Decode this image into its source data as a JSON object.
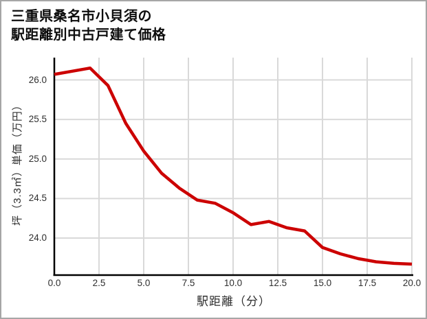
{
  "title": {
    "line1": "三重県桑名市小貝須の",
    "line2": "駅距離別中古戸建て価格"
  },
  "chart_data": {
    "type": "line",
    "title": "三重県桑名市小貝須の駅距離別中古戸建て価格",
    "xlabel": "駅距離（分）",
    "ylabel": "坪（3.3㎡）単価（万円）",
    "x": [
      0,
      1,
      2,
      3,
      4,
      5,
      6,
      7,
      8,
      9,
      10,
      11,
      12,
      13,
      14,
      15,
      16,
      17,
      18,
      19,
      20
    ],
    "values": [
      26.07,
      26.11,
      26.15,
      25.93,
      25.45,
      25.1,
      24.82,
      24.63,
      24.48,
      24.44,
      24.32,
      24.17,
      24.21,
      24.13,
      24.09,
      23.88,
      23.8,
      23.74,
      23.7,
      23.68,
      23.67
    ],
    "x_ticks": [
      {
        "value": 0,
        "label": "0.0"
      },
      {
        "value": 2.5,
        "label": "2.5"
      },
      {
        "value": 5,
        "label": "5.0"
      },
      {
        "value": 7.5,
        "label": "7.5"
      },
      {
        "value": 10,
        "label": "10.0"
      },
      {
        "value": 12.5,
        "label": "12.5"
      },
      {
        "value": 15,
        "label": "15.0"
      },
      {
        "value": 17.5,
        "label": "17.5"
      },
      {
        "value": 20,
        "label": "20.0"
      }
    ],
    "y_ticks": [
      {
        "value": 26.0,
        "label": "26.0"
      },
      {
        "value": 25.5,
        "label": "25.5"
      },
      {
        "value": 25.0,
        "label": "25.0"
      },
      {
        "value": 24.5,
        "label": "24.5"
      },
      {
        "value": 24.0,
        "label": "24.0"
      }
    ],
    "xlim": [
      0,
      20
    ],
    "ylim": [
      23.5,
      26.3
    ],
    "grid": true,
    "legend": false,
    "line_color": "#cc0000",
    "grid_color": "#d9d9d9",
    "axis_color": "#000000"
  }
}
